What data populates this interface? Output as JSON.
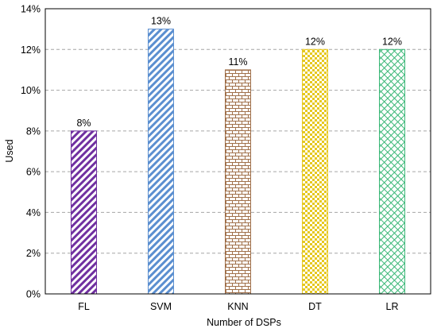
{
  "chart_data": {
    "type": "bar",
    "categories": [
      "FL",
      "SVM",
      "KNN",
      "DT",
      "LR"
    ],
    "values": [
      8,
      13,
      11,
      12,
      12
    ],
    "data_labels": [
      "8%",
      "13%",
      "11%",
      "12%",
      "12%"
    ],
    "xlabel": "Number of DSPs",
    "ylabel": "Used",
    "ylim": [
      0,
      14
    ],
    "yticks": [
      0,
      2,
      4,
      6,
      8,
      10,
      12,
      14
    ],
    "ytick_labels": [
      "0%",
      "2%",
      "4%",
      "6%",
      "8%",
      "10%",
      "12%",
      "14%"
    ],
    "grid": "horizontal dashed",
    "legend": "none",
    "colors": [
      "#7030A0",
      "#5B8FD0",
      "#A0704A",
      "#E6C820",
      "#3CB878"
    ],
    "patterns": [
      "diagonal-stripes",
      "diagonal-stripes",
      "brick",
      "checker",
      "crosshatch"
    ]
  }
}
